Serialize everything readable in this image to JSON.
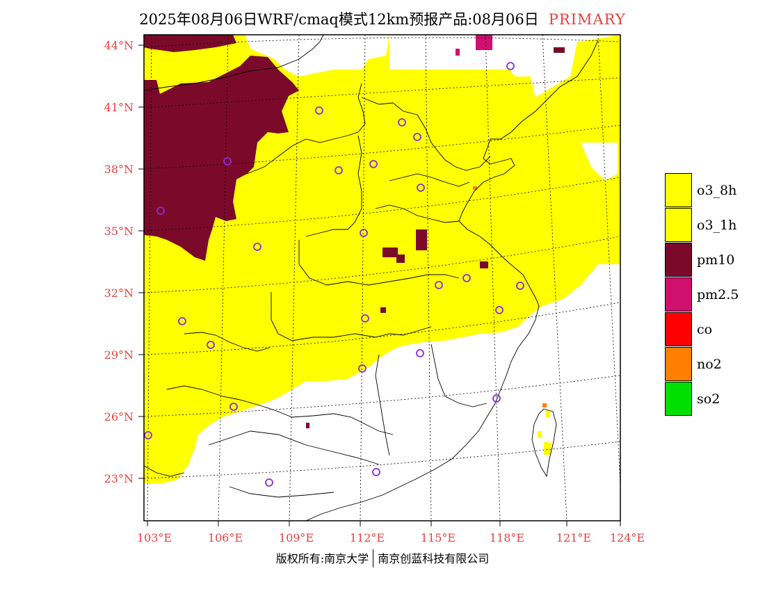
{
  "title": {
    "main": "2025年08月06日WRF/cmaq模式12km预报产品:08月06日",
    "tag": "PRIMARY"
  },
  "latitude_labels": [
    "44°N",
    "41°N",
    "38°N",
    "35°N",
    "32°N",
    "29°N",
    "26°N",
    "23°N"
  ],
  "longitude_labels": [
    "103°E",
    "106°E",
    "109°E",
    "112°E",
    "115°E",
    "118°E",
    "121°E",
    "124°E"
  ],
  "legend": [
    {
      "label": "o3_8h",
      "color": "#ffff00"
    },
    {
      "label": "o3_1h",
      "color": "#ffff00"
    },
    {
      "label": "pm10",
      "color": "#7b0a2a"
    },
    {
      "label": "pm2.5",
      "color": "#d0106e"
    },
    {
      "label": "co",
      "color": "#ff0000"
    },
    {
      "label": "no2",
      "color": "#ff7f00"
    },
    {
      "label": "so2",
      "color": "#00e000"
    }
  ],
  "footer": {
    "left": "版权所有:南京大学",
    "right": "南京创蓝科技有限公司"
  },
  "colors": {
    "accent": "#e8423d",
    "o3": "#ffff00",
    "pm10": "#7b0a2a",
    "pm25": "#d0106e",
    "no2": "#ff7f00",
    "station": "#8a2be2"
  }
}
